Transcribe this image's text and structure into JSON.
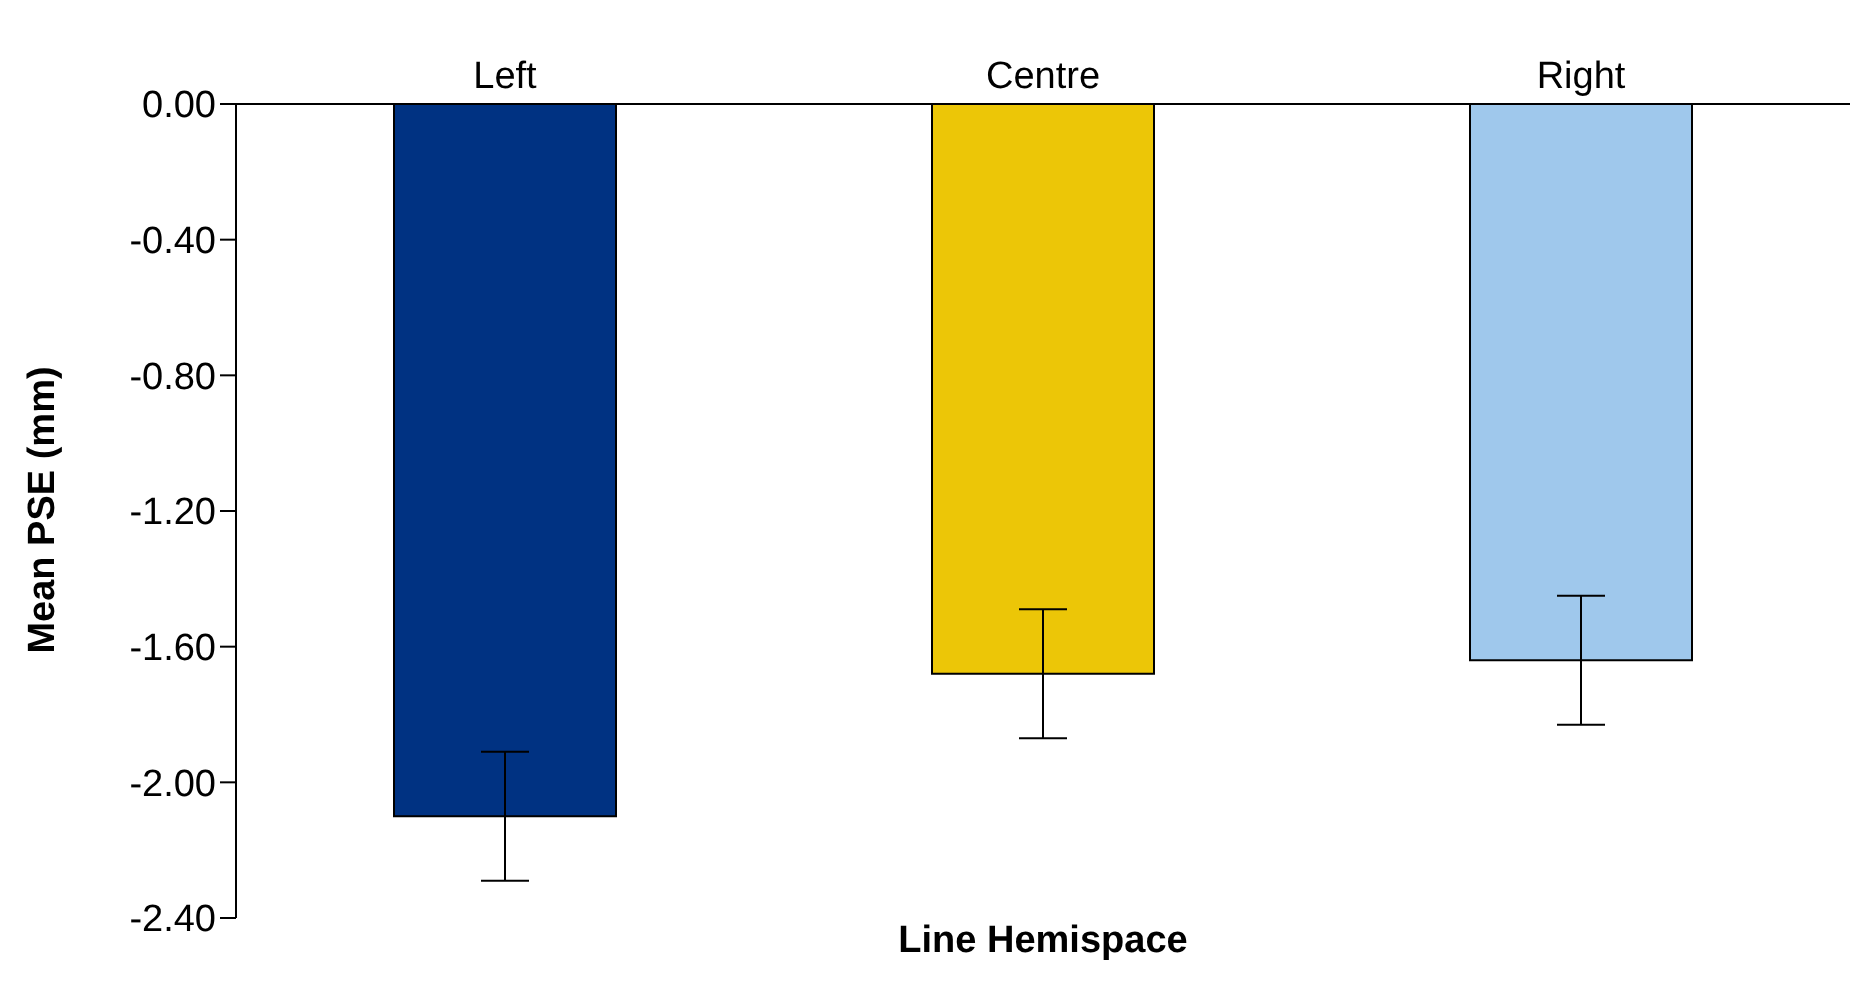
{
  "chart_data": {
    "type": "bar",
    "xlabel": "Line Hemispace",
    "ylabel": "Mean PSE (mm)",
    "categories": [
      "Left",
      "Centre",
      "Right"
    ],
    "values": [
      -2.1,
      -1.68,
      -1.64
    ],
    "errors": [
      0.19,
      0.19,
      0.19
    ],
    "colors": [
      "#003282",
      "#ecc607",
      "#9fc8ec"
    ],
    "ylim": [
      -2.4,
      0
    ],
    "yticks": [
      {
        "value": 0,
        "label": "0.00"
      },
      {
        "value": -0.4,
        "label": "-0.40"
      },
      {
        "value": -0.8,
        "label": "-0.80"
      },
      {
        "value": -1.2,
        "label": "-1.20"
      },
      {
        "value": -1.6,
        "label": "-1.60"
      },
      {
        "value": -2.0,
        "label": "-2.00"
      },
      {
        "value": -2.4,
        "label": "-2.40"
      }
    ]
  }
}
